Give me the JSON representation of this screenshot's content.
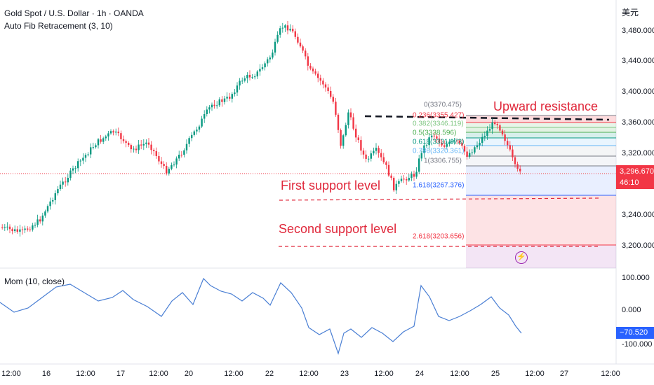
{
  "header": {
    "symbol_title": "Gold Spot / U.S. Dollar · 1h · OANDA",
    "fib_indicator": "Auto Fib Retracement (3, 10)",
    "mom_indicator": "Mom (10, close)",
    "currency": "美元"
  },
  "price_axis": {
    "labels": [
      "3,480.000",
      "3,440.000",
      "3,400.000",
      "3,360.000",
      "3,320.000",
      "3,240.000",
      "3,200.000"
    ],
    "last_price": "3,296.670",
    "countdown": "46:10"
  },
  "momentum_axis": {
    "labels": [
      "100.000",
      "0.000",
      "-100.000"
    ],
    "current_value": "−70.520"
  },
  "time_axis": {
    "labels": [
      "12:00",
      "16",
      "12:00",
      "17",
      "12:00",
      "20",
      "12:00",
      "22",
      "12:00",
      "23",
      "12:00",
      "24",
      "12:00",
      "25",
      "12:00",
      "27",
      "12:00"
    ]
  },
  "fib_levels": [
    {
      "text": "0(3370.475)",
      "color": "#787b86"
    },
    {
      "text": "0.236(3355.427)",
      "color": "#f23645"
    },
    {
      "text": "0.382(3346.119)",
      "color": "#81c784"
    },
    {
      "text": "0.5(3338.596)",
      "color": "#4caf50"
    },
    {
      "text": "0.618(3331.073)",
      "color": "#089981"
    },
    {
      "text": "0.786(3320.361)",
      "color": "#64b5f6"
    },
    {
      "text": "1(3306.755)",
      "color": "#787b86"
    },
    {
      "text": "1.618(3267.376)",
      "color": "#2962ff"
    },
    {
      "text": "2.618(3203.656)",
      "color": "#f23645"
    }
  ],
  "annotations": {
    "upward_resistance": "Upward resistance",
    "first_support": "First support level",
    "second_support": "Second support level"
  },
  "colors": {
    "up": "#089981",
    "down": "#f23645",
    "mom_line": "#4a7fd4",
    "annotation": "#e0283b"
  },
  "icons": {
    "alert": "lightning-bolt-icon"
  }
}
